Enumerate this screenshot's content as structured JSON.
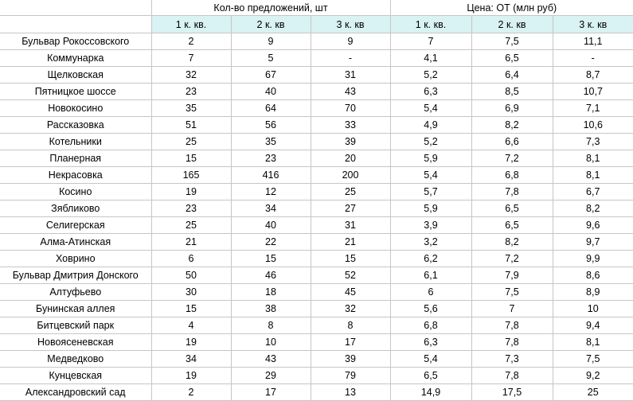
{
  "header": {
    "group_count": "Кол-во предложений, шт",
    "group_price": "Цена: ОТ (млн руб)",
    "sub": [
      "1 к. кв.",
      "2 к. кв",
      "3 к. кв",
      "1 к. кв.",
      "2 к. кв",
      "3 к. кв"
    ]
  },
  "rows": [
    {
      "name": "Бульвар Рокоссовского",
      "v": [
        "2",
        "9",
        "9",
        "7",
        "7,5",
        "11,1"
      ]
    },
    {
      "name": "Коммунарка",
      "v": [
        "7",
        "5",
        "-",
        "4,1",
        "6,5",
        "-"
      ]
    },
    {
      "name": "Щелковская",
      "v": [
        "32",
        "67",
        "31",
        "5,2",
        "6,4",
        "8,7"
      ]
    },
    {
      "name": "Пятницкое шоссе",
      "v": [
        "23",
        "40",
        "43",
        "6,3",
        "8,5",
        "10,7"
      ]
    },
    {
      "name": "Новокосино",
      "v": [
        "35",
        "64",
        "70",
        "5,4",
        "6,9",
        "7,1"
      ]
    },
    {
      "name": "Рассказовка",
      "v": [
        "51",
        "56",
        "33",
        "4,9",
        "8,2",
        "10,6"
      ]
    },
    {
      "name": "Котельники",
      "v": [
        "25",
        "35",
        "39",
        "5,2",
        "6,6",
        "7,3"
      ]
    },
    {
      "name": "Планерная",
      "v": [
        "15",
        "23",
        "20",
        "5,9",
        "7,2",
        "8,1"
      ]
    },
    {
      "name": "Некрасовка",
      "v": [
        "165",
        "416",
        "200",
        "5,4",
        "6,8",
        "8,1"
      ]
    },
    {
      "name": "Косино",
      "v": [
        "19",
        "12",
        "25",
        "5,7",
        "7,8",
        "6,7"
      ]
    },
    {
      "name": "Зябликово",
      "v": [
        "23",
        "34",
        "27",
        "5,9",
        "6,5",
        "8,2"
      ]
    },
    {
      "name": "Селигерская",
      "v": [
        "25",
        "40",
        "31",
        "3,9",
        "6,5",
        "9,6"
      ]
    },
    {
      "name": "Алма-Атинская",
      "v": [
        "21",
        "22",
        "21",
        "3,2",
        "8,2",
        "9,7"
      ]
    },
    {
      "name": "Ховрино",
      "v": [
        "6",
        "15",
        "15",
        "6,2",
        "7,2",
        "9,9"
      ]
    },
    {
      "name": "Бульвар Дмитрия Донского",
      "v": [
        "50",
        "46",
        "52",
        "6,1",
        "7,9",
        "8,6"
      ]
    },
    {
      "name": "Алтуфьево",
      "v": [
        "30",
        "18",
        "45",
        "6",
        "7,5",
        "8,9"
      ]
    },
    {
      "name": "Бунинская аллея",
      "v": [
        "15",
        "38",
        "32",
        "5,6",
        "7",
        "10"
      ]
    },
    {
      "name": "Битцевский парк",
      "v": [
        "4",
        "8",
        "8",
        "6,8",
        "7,8",
        "9,4"
      ]
    },
    {
      "name": "Новоясеневская",
      "v": [
        "19",
        "10",
        "17",
        "6,3",
        "7,8",
        "8,1"
      ]
    },
    {
      "name": "Медведково",
      "v": [
        "34",
        "43",
        "39",
        "5,4",
        "7,3",
        "7,5"
      ]
    },
    {
      "name": "Кунцевская",
      "v": [
        "19",
        "29",
        "79",
        "6,5",
        "7,8",
        "9,2"
      ]
    },
    {
      "name": "Александровский сад",
      "v": [
        "2",
        "17",
        "13",
        "14,9",
        "17,5",
        "25"
      ]
    }
  ]
}
